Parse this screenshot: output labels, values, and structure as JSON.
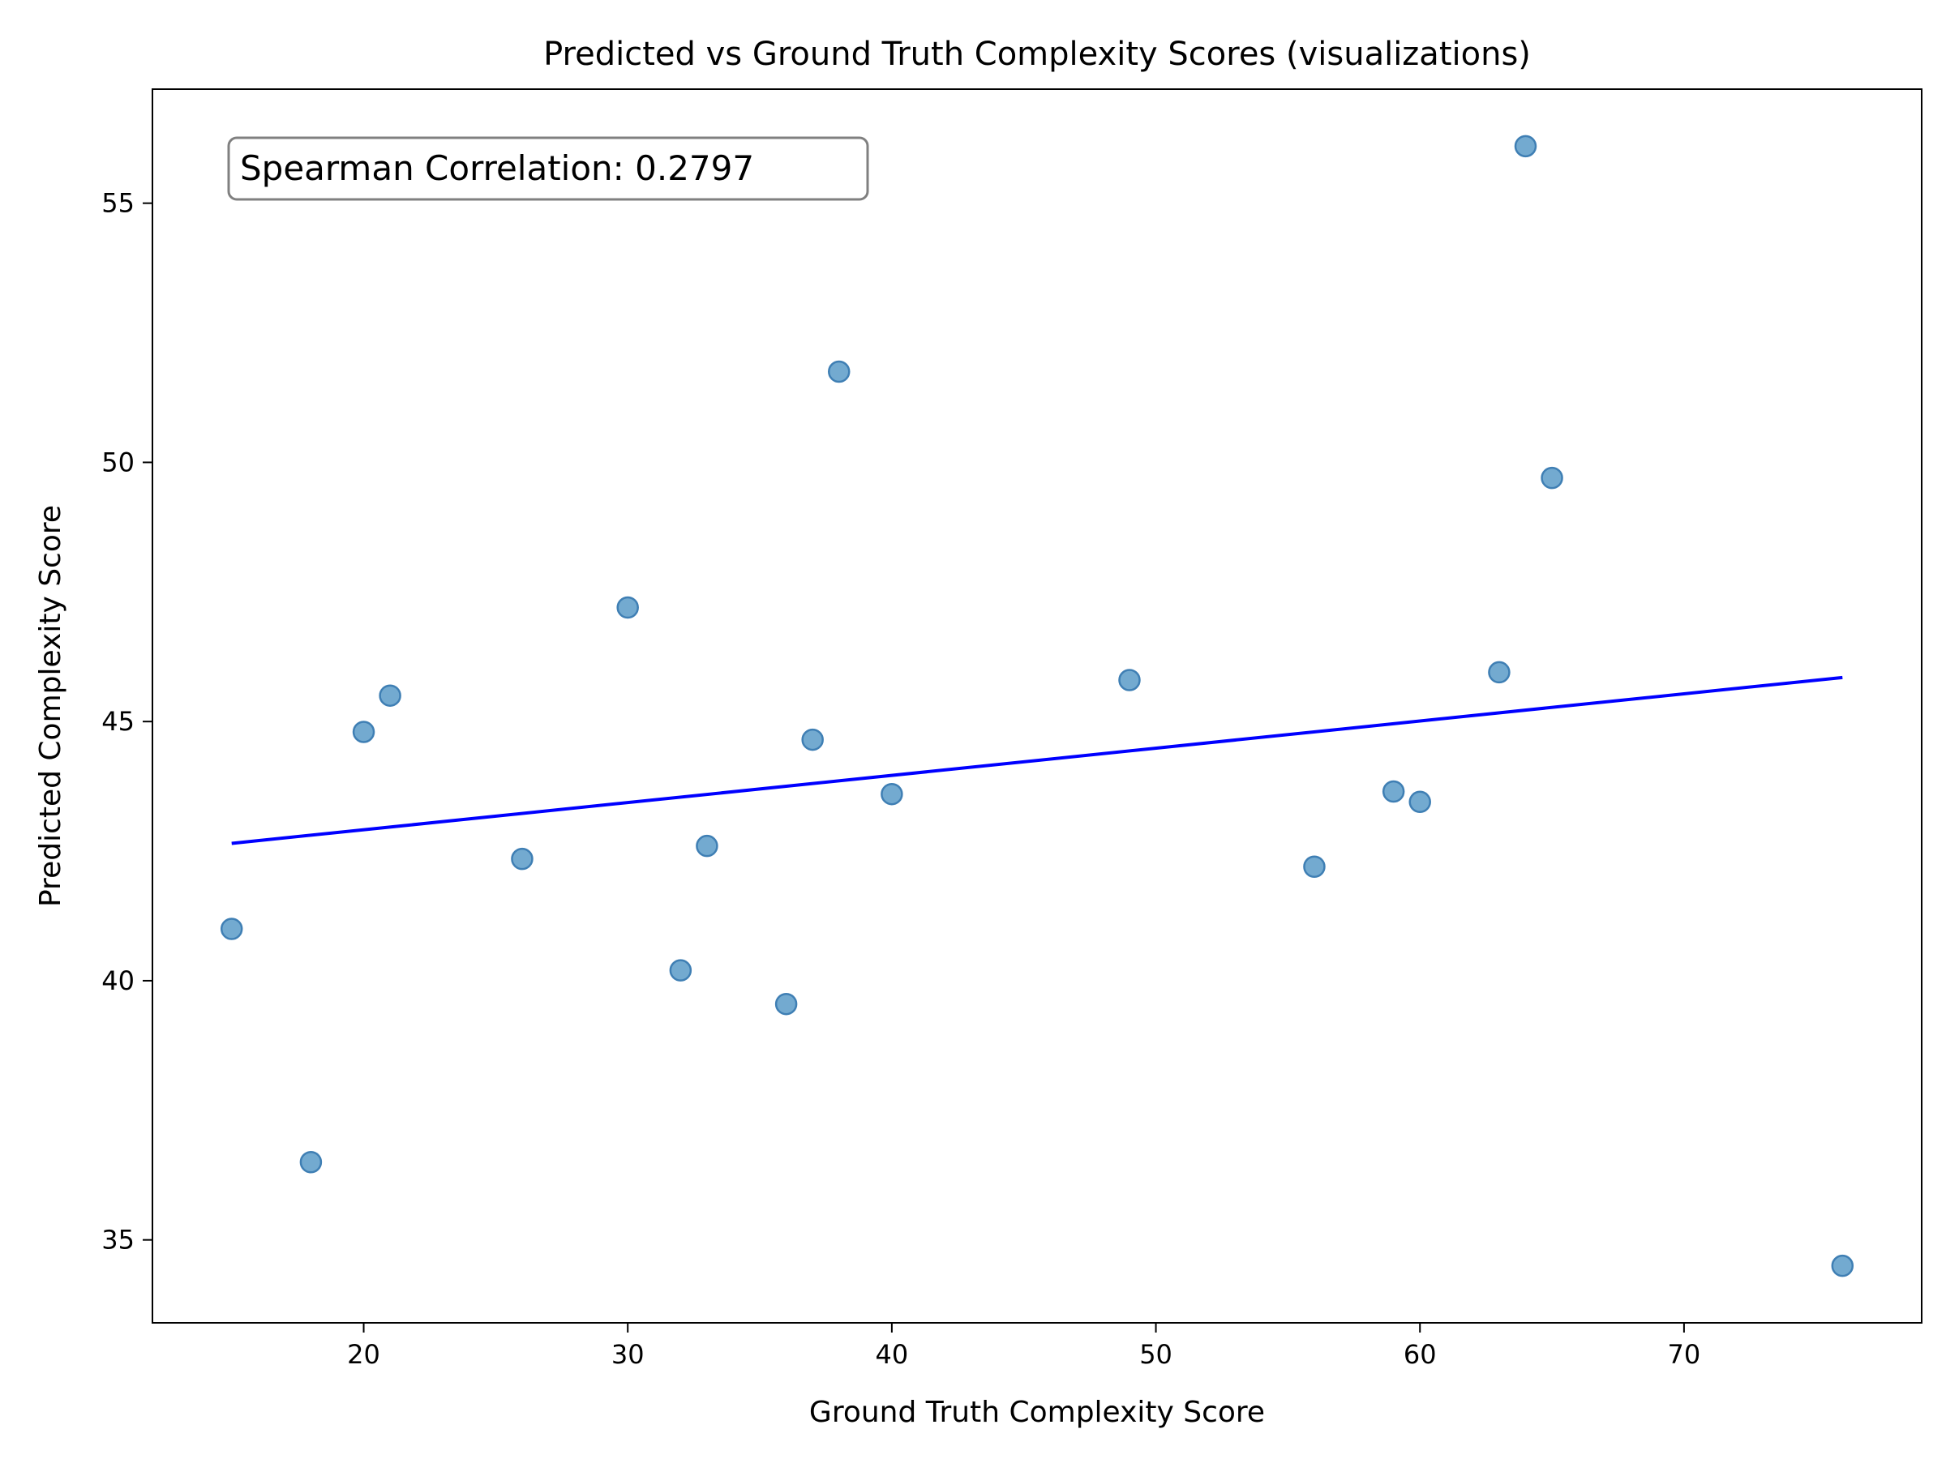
{
  "chart_data": {
    "type": "scatter",
    "title": "Predicted vs Ground Truth Complexity Scores (visualizations)",
    "xlabel": "Ground Truth Complexity Score",
    "ylabel": "Predicted Complexity Score",
    "xlim": [
      12,
      79
    ],
    "ylim": [
      33.4,
      57.2
    ],
    "x_ticks": [
      20,
      30,
      40,
      50,
      60,
      70
    ],
    "y_ticks": [
      35,
      40,
      45,
      50,
      55
    ],
    "grid": false,
    "annotation": "Spearman Correlation: 0.2797",
    "point_color": "#5b9bc8",
    "point_edge_color": "#3f7fb4",
    "line_color": "#0000ff",
    "points": [
      {
        "x": 15,
        "y": 41.0
      },
      {
        "x": 18,
        "y": 36.5
      },
      {
        "x": 20,
        "y": 44.8
      },
      {
        "x": 21,
        "y": 45.5
      },
      {
        "x": 26,
        "y": 42.35
      },
      {
        "x": 30,
        "y": 47.2
      },
      {
        "x": 32,
        "y": 40.2
      },
      {
        "x": 33,
        "y": 42.6
      },
      {
        "x": 36,
        "y": 39.55
      },
      {
        "x": 37,
        "y": 44.65
      },
      {
        "x": 38,
        "y": 51.75
      },
      {
        "x": 40,
        "y": 43.6
      },
      {
        "x": 49,
        "y": 45.8
      },
      {
        "x": 56,
        "y": 42.2
      },
      {
        "x": 59,
        "y": 43.65
      },
      {
        "x": 60,
        "y": 43.45
      },
      {
        "x": 63,
        "y": 45.95
      },
      {
        "x": 64,
        "y": 56.1
      },
      {
        "x": 65,
        "y": 49.7
      },
      {
        "x": 76,
        "y": 34.5
      }
    ],
    "trend_line": {
      "x": [
        15,
        76
      ],
      "y": [
        42.65,
        45.85
      ]
    }
  }
}
